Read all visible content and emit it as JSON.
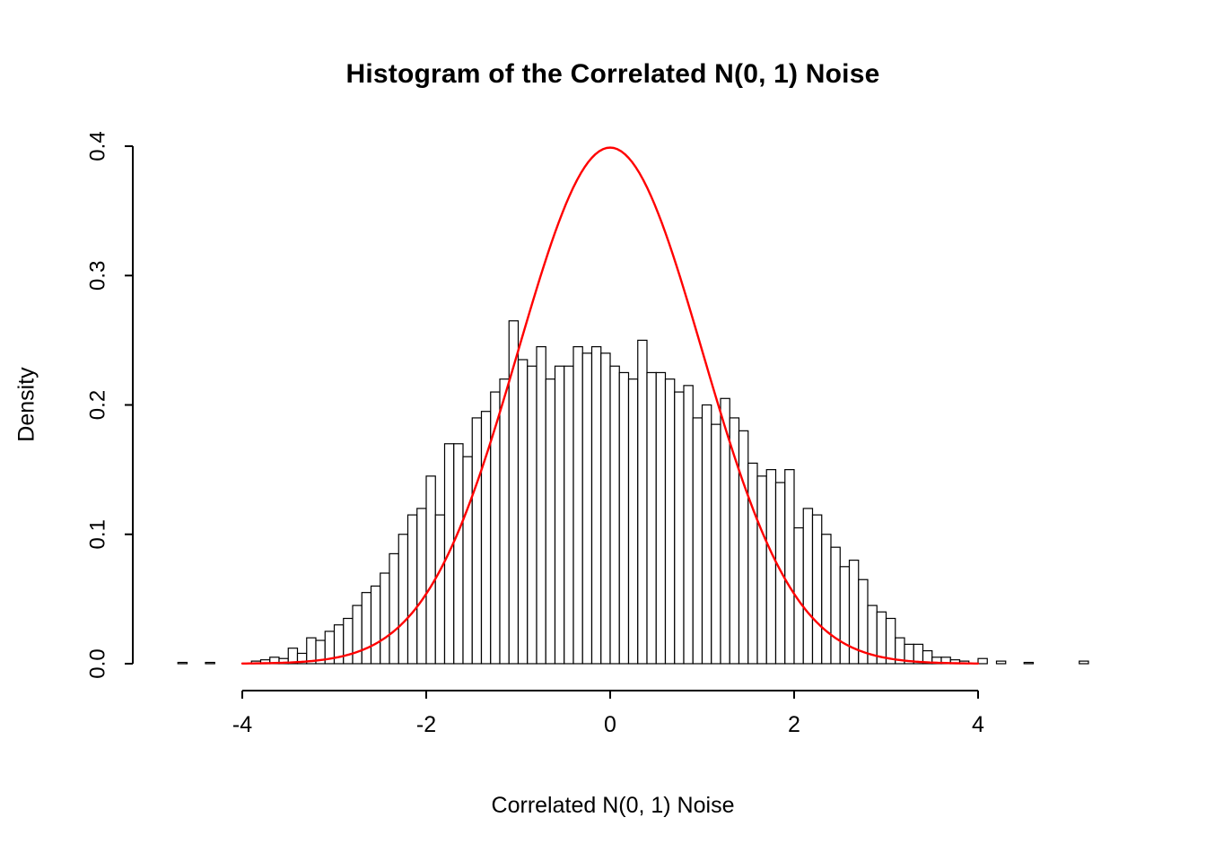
{
  "colors": {
    "background": "#ffffff",
    "bar_fill": "#ffffff",
    "bar_stroke": "#000000",
    "axis": "#000000",
    "curve": "#ff0000"
  },
  "chart_data": {
    "type": "bar",
    "subtype": "histogram-with-density-overlay",
    "title": "Histogram of the Correlated N(0, 1) Noise",
    "xlabel": "Correlated N(0, 1) Noise",
    "ylabel": "Density",
    "xlim": [
      -4,
      4
    ],
    "ylim": [
      0,
      0.4
    ],
    "grid": false,
    "legend": "none",
    "x_ticks": [
      {
        "value": -4,
        "label": "-4"
      },
      {
        "value": -2,
        "label": "-2"
      },
      {
        "value": 0,
        "label": "0"
      },
      {
        "value": 2,
        "label": "2"
      },
      {
        "value": 4,
        "label": "4"
      }
    ],
    "y_ticks": [
      {
        "value": 0.0,
        "label": "0.0"
      },
      {
        "value": 0.1,
        "label": "0.1"
      },
      {
        "value": 0.2,
        "label": "0.2"
      },
      {
        "value": 0.3,
        "label": "0.3"
      },
      {
        "value": 0.4,
        "label": "0.4"
      }
    ],
    "bin_start": -4.7,
    "bin_width": 0.1,
    "densities": [
      0.001,
      0,
      0,
      0.001,
      0,
      0,
      0,
      0,
      0.002,
      0.003,
      0.005,
      0.004,
      0.012,
      0.008,
      0.02,
      0.018,
      0.025,
      0.03,
      0.035,
      0.045,
      0.055,
      0.06,
      0.07,
      0.085,
      0.1,
      0.115,
      0.12,
      0.145,
      0.115,
      0.17,
      0.17,
      0.16,
      0.19,
      0.195,
      0.21,
      0.22,
      0.265,
      0.235,
      0.23,
      0.245,
      0.22,
      0.23,
      0.23,
      0.245,
      0.24,
      0.245,
      0.24,
      0.23,
      0.225,
      0.22,
      0.25,
      0.225,
      0.225,
      0.22,
      0.21,
      0.215,
      0.19,
      0.2,
      0.185,
      0.205,
      0.19,
      0.18,
      0.155,
      0.145,
      0.15,
      0.14,
      0.15,
      0.105,
      0.12,
      0.115,
      0.1,
      0.09,
      0.075,
      0.08,
      0.065,
      0.045,
      0.04,
      0.035,
      0.02,
      0.015,
      0.015,
      0.01,
      0.005,
      0.005,
      0.003,
      0.002,
      0,
      0.004,
      0,
      0.002,
      0,
      0,
      0.001,
      0,
      0,
      0,
      0,
      0,
      0.002
    ],
    "overlay_curve": {
      "description": "standard normal N(0, 1) density curve",
      "mean": 0,
      "sd": 1,
      "peak": 0.3989,
      "range": [
        -4,
        4
      ],
      "color": "#ff0000"
    }
  }
}
